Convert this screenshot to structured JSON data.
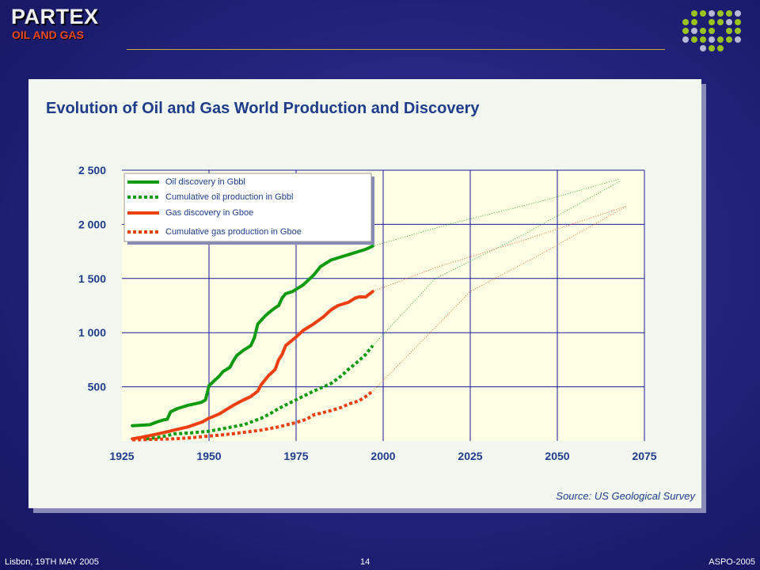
{
  "header": {
    "brand": "PARTEX",
    "subbrand": "OIL AND GAS"
  },
  "slide": {
    "title": "Evolution of Oil and Gas World Production and Discovery",
    "source": "Source: US Geological Survey"
  },
  "footer": {
    "left": "Lisbon, 19TH MAY 2005",
    "center": "14",
    "right": "ASPO-2005"
  },
  "colors": {
    "oil": "#109a10",
    "gas": "#ee3f10",
    "plot_bg": "#ffffe6",
    "grid": "#1a1a99",
    "axis_text": "#1f3c8a",
    "dot_green": "#9bc31e",
    "dot_gray": "#b9b9d6"
  },
  "chart_data": {
    "type": "line",
    "title": "Evolution of Oil and Gas World Production and Discovery",
    "xlabel": "",
    "ylabel": "",
    "xlim": [
      1925,
      2075
    ],
    "ylim": [
      0,
      2500
    ],
    "x_ticks": [
      1925,
      1950,
      1975,
      2000,
      2025,
      2050,
      2075
    ],
    "x_tick_labels": [
      "1925",
      "1950",
      "1975",
      "2000",
      "2025",
      "2050",
      "2075"
    ],
    "y_ticks": [
      500,
      1000,
      1500,
      2000,
      2500
    ],
    "y_tick_labels": [
      "500",
      "1 000",
      "1 500",
      "2 000",
      "2 500"
    ],
    "grid": true,
    "legend_position": "top-left",
    "series": [
      {
        "name": "Oil discovery in Gbbl",
        "color_key": "oil",
        "style": "solid",
        "x": [
          1928,
          1933,
          1935,
          1937,
          1938,
          1939,
          1941,
          1944,
          1947,
          1948,
          1949,
          1950,
          1953,
          1954,
          1956,
          1957,
          1958,
          1960,
          1961,
          1962,
          1963,
          1964,
          1966,
          1967,
          1969,
          1970,
          1971,
          1972,
          1974,
          1976,
          1977,
          1978,
          1980,
          1982,
          1985,
          1988,
          1990,
          1993,
          1995,
          1997
        ],
        "y": [
          140,
          150,
          175,
          195,
          200,
          270,
          300,
          330,
          350,
          360,
          380,
          510,
          600,
          640,
          680,
          740,
          790,
          840,
          860,
          880,
          950,
          1080,
          1150,
          1180,
          1230,
          1250,
          1320,
          1360,
          1380,
          1420,
          1440,
          1470,
          1530,
          1610,
          1670,
          1700,
          1720,
          1750,
          1770,
          1800
        ]
      },
      {
        "name": "Cumulative oil production in Gbbl",
        "color_key": "oil",
        "style": "dotted",
        "x": [
          1932,
          1935,
          1938,
          1940,
          1945,
          1950,
          1955,
          1960,
          1965,
          1968,
          1970,
          1975,
          1980,
          1985,
          1988,
          1990,
          1993,
          1995,
          1997
        ],
        "y": [
          20,
          30,
          50,
          65,
          75,
          90,
          120,
          150,
          210,
          260,
          300,
          380,
          460,
          530,
          600,
          660,
          740,
          800,
          880
        ]
      },
      {
        "name": "Gas discovery in Gboe",
        "color_key": "gas",
        "style": "solid",
        "x": [
          1928,
          1930,
          1933,
          1936,
          1940,
          1944,
          1948,
          1950,
          1953,
          1955,
          1957,
          1960,
          1962,
          1964,
          1965,
          1966,
          1967,
          1969,
          1970,
          1971,
          1972,
          1975,
          1977,
          1980,
          1983,
          1985,
          1987,
          1990,
          1992,
          1993,
          1995,
          1997
        ],
        "y": [
          20,
          30,
          50,
          70,
          100,
          130,
          175,
          210,
          250,
          290,
          330,
          380,
          410,
          460,
          520,
          560,
          600,
          660,
          750,
          800,
          880,
          960,
          1020,
          1080,
          1150,
          1210,
          1250,
          1280,
          1320,
          1330,
          1330,
          1380
        ]
      },
      {
        "name": "Cumulative gas production in Gboe",
        "color_key": "gas",
        "style": "dotted",
        "x": [
          1928,
          1935,
          1940,
          1945,
          1950,
          1955,
          1960,
          1965,
          1970,
          1975,
          1978,
          1980,
          1985,
          1988,
          1990,
          1993,
          1995,
          1997
        ],
        "y": [
          10,
          15,
          20,
          30,
          45,
          60,
          80,
          100,
          130,
          170,
          200,
          240,
          280,
          310,
          340,
          370,
          410,
          460
        ]
      }
    ],
    "projections": [
      {
        "color_key": "oil",
        "x": [
          1997,
          2020,
          2045,
          2068
        ],
        "y": [
          1800,
          2010,
          2210,
          2420
        ]
      },
      {
        "color_key": "oil",
        "x": [
          1997,
          2015,
          2040,
          2068
        ],
        "y": [
          880,
          1500,
          1900,
          2400
        ]
      },
      {
        "color_key": "gas",
        "x": [
          1997,
          2015,
          2040,
          2070
        ],
        "y": [
          1380,
          1600,
          1850,
          2170
        ]
      },
      {
        "color_key": "gas",
        "x": [
          1997,
          2015,
          2025,
          2045,
          2070
        ],
        "y": [
          460,
          1050,
          1380,
          1720,
          2170
        ]
      }
    ]
  }
}
